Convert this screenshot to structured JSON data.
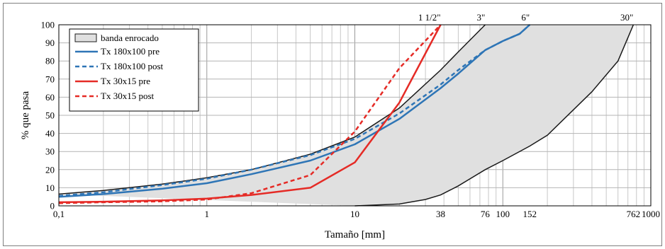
{
  "chart_data": {
    "type": "line",
    "xlabel": "Tamaño [mm]",
    "ylabel": "% que pasa",
    "x_scale": "log",
    "xlim": [
      0.1,
      1000
    ],
    "ylim": [
      0,
      100
    ],
    "grid": true,
    "legend_position": "top-left",
    "x_ticks": [
      {
        "value": 0.1,
        "label": "0,1"
      },
      {
        "value": 1,
        "label": "1"
      },
      {
        "value": 10,
        "label": "10"
      },
      {
        "value": 38,
        "label": "38"
      },
      {
        "value": 76,
        "label": "76"
      },
      {
        "value": 100,
        "label": "100"
      },
      {
        "value": 152,
        "label": "152"
      },
      {
        "value": 762,
        "label": "762"
      },
      {
        "value": 1000,
        "label": "1000"
      }
    ],
    "y_ticks": [
      0,
      10,
      20,
      30,
      40,
      50,
      60,
      70,
      80,
      90,
      100
    ],
    "top_annotations": [
      {
        "value": 38,
        "label": "1 1/2\""
      },
      {
        "value": 76,
        "label": "3\""
      },
      {
        "value": 152,
        "label": "6\""
      },
      {
        "value": 762,
        "label": "30\""
      }
    ],
    "band": {
      "name": "banda enrocado",
      "fill": "#e0e0e0",
      "stroke": "#1a1a1a",
      "upper": [
        [
          0.1,
          6.5
        ],
        [
          0.2,
          8.5
        ],
        [
          0.5,
          12
        ],
        [
          1,
          15.5
        ],
        [
          2,
          20
        ],
        [
          5,
          28.5
        ],
        [
          10,
          38
        ],
        [
          20,
          54
        ],
        [
          38,
          75
        ],
        [
          50,
          85
        ],
        [
          76,
          100
        ]
      ],
      "lower": [
        [
          762,
          100
        ],
        [
          600,
          80
        ],
        [
          400,
          63
        ],
        [
          200,
          39
        ],
        [
          152,
          33
        ],
        [
          100,
          25
        ],
        [
          76,
          20
        ],
        [
          50,
          11
        ],
        [
          38,
          6
        ],
        [
          30,
          3.5
        ],
        [
          20,
          1
        ],
        [
          10,
          0
        ]
      ]
    },
    "series": [
      {
        "name": "Tx 180x100 pre",
        "color": "#2e75b6",
        "dash": false,
        "points": [
          [
            0.1,
            5
          ],
          [
            0.2,
            6.5
          ],
          [
            0.5,
            9.5
          ],
          [
            1,
            12.5
          ],
          [
            2,
            17.5
          ],
          [
            5,
            25
          ],
          [
            10,
            34
          ],
          [
            20,
            48
          ],
          [
            38,
            65
          ],
          [
            50,
            73
          ],
          [
            76,
            86
          ],
          [
            100,
            91
          ],
          [
            130,
            95
          ],
          [
            152,
            100
          ]
        ]
      },
      {
        "name": "Tx 180x100 post",
        "color": "#2e75b6",
        "dash": true,
        "points": [
          [
            0.1,
            5.5
          ],
          [
            0.2,
            7.5
          ],
          [
            0.5,
            11.5
          ],
          [
            1,
            15
          ],
          [
            2,
            20
          ],
          [
            5,
            28
          ],
          [
            10,
            37
          ],
          [
            20,
            51
          ],
          [
            38,
            67
          ],
          [
            50,
            75
          ],
          [
            76,
            86
          ],
          [
            100,
            91
          ],
          [
            130,
            95
          ],
          [
            152,
            100
          ]
        ]
      },
      {
        "name": "Tx 30x15 pre",
        "color": "#e52b26",
        "dash": false,
        "points": [
          [
            0.1,
            2
          ],
          [
            0.2,
            2.3
          ],
          [
            0.5,
            3
          ],
          [
            1,
            4
          ],
          [
            2,
            6
          ],
          [
            5,
            10
          ],
          [
            10,
            24
          ],
          [
            20,
            57
          ],
          [
            38,
            100
          ]
        ]
      },
      {
        "name": "Tx 30x15 post",
        "color": "#e52b26",
        "dash": true,
        "points": [
          [
            0.1,
            1.5
          ],
          [
            0.2,
            2
          ],
          [
            0.5,
            2.5
          ],
          [
            1,
            3.5
          ],
          [
            2,
            7
          ],
          [
            5,
            17
          ],
          [
            10,
            41
          ],
          [
            20,
            76
          ],
          [
            38,
            100
          ]
        ]
      }
    ]
  }
}
